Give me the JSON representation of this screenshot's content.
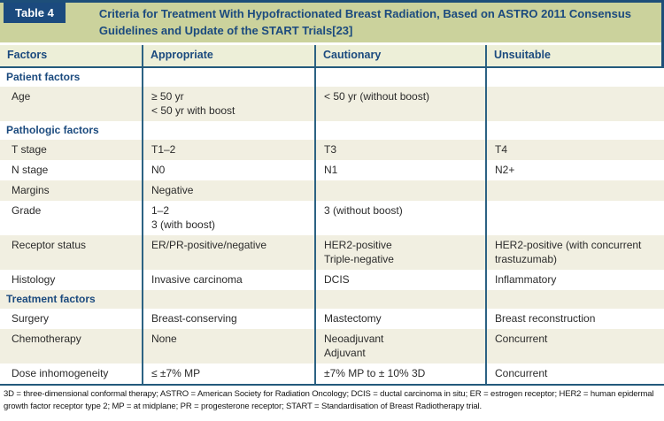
{
  "table": {
    "label": "Table 4",
    "title": "Criteria for Treatment With Hypofractionated Breast Radiation, Based on ASTRO 2011 Consensus Guidelines and Update of the START Trials[23]",
    "columns": [
      "Factors",
      "Appropriate",
      "Cautionary",
      "Unsuitable"
    ],
    "rows": [
      {
        "type": "section",
        "label": "Patient factors"
      },
      {
        "type": "data",
        "factor": "Age",
        "appropriate": [
          "≥ 50 yr",
          "< 50 yr with boost"
        ],
        "cautionary": [
          "< 50 yr (without boost)"
        ],
        "unsuitable": []
      },
      {
        "type": "section",
        "label": "Pathologic factors"
      },
      {
        "type": "data",
        "factor": "T stage",
        "appropriate": [
          "T1–2"
        ],
        "cautionary": [
          "T3"
        ],
        "unsuitable": [
          "T4"
        ]
      },
      {
        "type": "data",
        "factor": "N stage",
        "appropriate": [
          "N0"
        ],
        "cautionary": [
          "N1"
        ],
        "unsuitable": [
          "N2+"
        ]
      },
      {
        "type": "data",
        "factor": "Margins",
        "appropriate": [
          "Negative"
        ],
        "cautionary": [],
        "unsuitable": []
      },
      {
        "type": "data",
        "factor": "Grade",
        "appropriate": [
          "1–2",
          "3 (with boost)"
        ],
        "cautionary": [
          "3 (without boost)"
        ],
        "unsuitable": []
      },
      {
        "type": "data",
        "factor": "Receptor status",
        "appropriate": [
          "ER/PR-positive/negative"
        ],
        "cautionary": [
          "HER2-positive",
          "Triple-negative"
        ],
        "unsuitable": [
          "HER2-positive (with concurrent trastuzumab)"
        ]
      },
      {
        "type": "data",
        "factor": "Histology",
        "appropriate": [
          "Invasive carcinoma"
        ],
        "cautionary": [
          "DCIS"
        ],
        "unsuitable": [
          "Inflammatory"
        ]
      },
      {
        "type": "section",
        "label": "Treatment factors"
      },
      {
        "type": "data",
        "factor": "Surgery",
        "appropriate": [
          "Breast-conserving"
        ],
        "cautionary": [
          "Mastectomy"
        ],
        "unsuitable": [
          "Breast reconstruction"
        ]
      },
      {
        "type": "data",
        "factor": "Chemotherapy",
        "appropriate": [
          "None"
        ],
        "cautionary": [
          "Neoadjuvant",
          "Adjuvant"
        ],
        "unsuitable": [
          "Concurrent"
        ]
      },
      {
        "type": "data",
        "factor": "Dose inhomogeneity",
        "appropriate": [
          "≤ ±7% MP"
        ],
        "cautionary": [
          "±7% MP to ± 10% 3D"
        ],
        "unsuitable": [
          "Concurrent"
        ]
      }
    ],
    "footnote": "3D = three-dimensional conformal therapy; ASTRO = American Society for Radiation Oncology; DCIS = ductal carcinoma in situ; ER = estrogen receptor; HER2 = human epidermal growth factor receptor type 2; MP = at midplane; PR = progesterone receptor; START = Standardisation of Breast Radiotherapy trial."
  },
  "colors": {
    "navy": "#1b4a7e",
    "frame_line": "#1d4e79",
    "grid_line": "#2c6283",
    "title_band": "#cbd29c",
    "header_band": "#edefd8",
    "row_beige": "#f1efe1",
    "row_white": "#ffffff",
    "body_text": "#2b2b2b"
  }
}
